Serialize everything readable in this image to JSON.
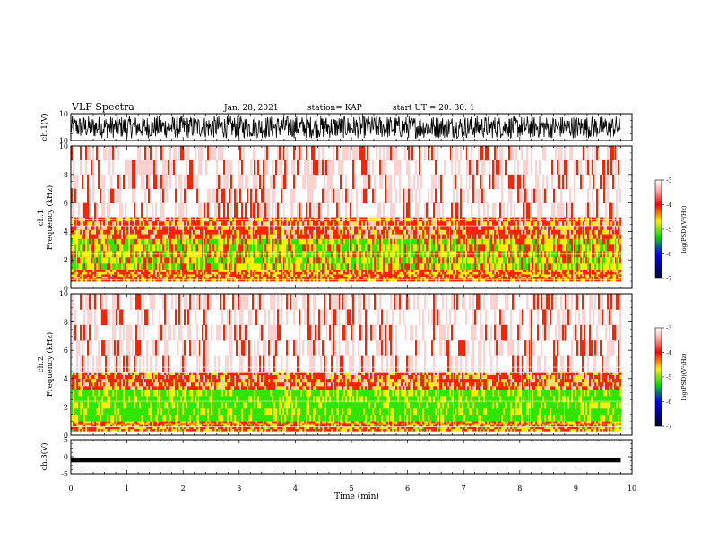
{
  "header": {
    "title": "VLF Spectra",
    "date": "Jan. 28, 2021",
    "station": "station= KAP",
    "start": "start UT =  20: 30: 1"
  },
  "colors": {
    "background": "#ffffff",
    "waveform": "#000000",
    "spectrum_low": "#2ee600",
    "spectrum_mid": "#ffee00",
    "spectrum_high": "#ff2200",
    "spectrum_faint": "#ffd0d0"
  },
  "chart_data": [
    {
      "type": "line",
      "panel": "ch1-waveform",
      "ylabel": "ch.1(V)",
      "ylim": [
        -10,
        10
      ],
      "yticks": [
        "10",
        "-10"
      ],
      "xlim": [
        0,
        10
      ],
      "data_extent_min": 9.8
    },
    {
      "type": "heatmap",
      "panel": "ch1-spectrogram",
      "ylabel": "ch.1\nFrequency (kHz)",
      "ylim": [
        0,
        10
      ],
      "yticks": [
        "0",
        "2",
        "4",
        "6",
        "8",
        "10"
      ],
      "xlim": [
        0,
        10
      ],
      "data_extent_min": 9.8,
      "colorbar": {
        "label": "log(PSD)(V²/Hz)",
        "range": [
          -7,
          -3
        ],
        "ticks": [
          "-3",
          "-4",
          "-5",
          "-6",
          "-7"
        ]
      },
      "bands": [
        {
          "fmin": 0.5,
          "fmax": 1.3,
          "level": -4.2
        },
        {
          "fmin": 1.3,
          "fmax": 3.5,
          "level": -4.6
        },
        {
          "fmin": 3.5,
          "fmax": 5.0,
          "level": -4.0
        },
        {
          "fmin": 5.0,
          "fmax": 10.0,
          "level": -3.5
        }
      ]
    },
    {
      "type": "heatmap",
      "panel": "ch2-spectrogram",
      "ylabel": "ch.2\nFrequency (kHz)",
      "ylim": [
        0,
        10
      ],
      "yticks": [
        "0",
        "2",
        "4",
        "6",
        "8",
        "10"
      ],
      "xlim": [
        0,
        10
      ],
      "data_extent_min": 9.8,
      "colorbar": {
        "label": "log(PSD)(V²/Hz)",
        "range": [
          -7,
          -3
        ],
        "ticks": [
          "-3",
          "-4",
          "-5",
          "-6",
          "-7"
        ]
      },
      "bands": [
        {
          "fmin": 0.3,
          "fmax": 1.0,
          "level": -4.3
        },
        {
          "fmin": 1.0,
          "fmax": 3.2,
          "level": -5.0
        },
        {
          "fmin": 3.2,
          "fmax": 4.5,
          "level": -4.0
        },
        {
          "fmin": 4.5,
          "fmax": 10.0,
          "level": -3.5
        }
      ]
    },
    {
      "type": "line",
      "panel": "ch3-waveform",
      "ylabel": "ch.3(V)",
      "ylim": [
        -5,
        5
      ],
      "yticks": [
        "5",
        "0",
        "-5"
      ],
      "xlim": [
        0,
        10
      ],
      "data_extent_min": 9.8,
      "level": -1
    }
  ],
  "xaxis": {
    "label": "Time (min)",
    "ticks": [
      "0",
      "1",
      "2",
      "3",
      "4",
      "5",
      "6",
      "7",
      "8",
      "9",
      "10"
    ]
  }
}
